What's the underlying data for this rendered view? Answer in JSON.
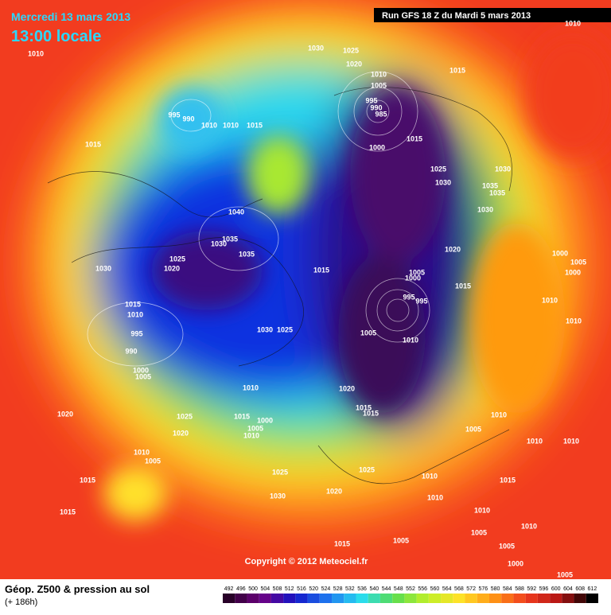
{
  "header": {
    "date": "Mercredi 13 mars 2013",
    "time": "13:00 locale",
    "run": "Run GFS 18 Z du Mardi 5 mars 2013"
  },
  "footer": {
    "title": "Géop. Z500 & pression au sol",
    "lead": "(+ 186h)",
    "copyright": "Copyright © 2012 Meteociel.fr"
  },
  "colorbar": {
    "labels": [
      492,
      496,
      500,
      504,
      508,
      512,
      516,
      520,
      524,
      528,
      532,
      536,
      540,
      544,
      548,
      552,
      556,
      560,
      564,
      568,
      572,
      576,
      580,
      584,
      588,
      592,
      596,
      600,
      604,
      608,
      612
    ]
  },
  "isobars": [
    "1010",
    "1010",
    "1030",
    "1025",
    "1020",
    "1015",
    "1010",
    "1005",
    "995",
    "990",
    "985",
    "995",
    "990",
    "1010",
    "1010",
    "1015",
    "1015",
    "1000",
    "1015",
    "1025",
    "1030",
    "1030",
    "1035",
    "1035",
    "1030",
    "1040",
    "1035",
    "1030",
    "1035",
    "1025",
    "1020",
    "1030",
    "1015",
    "1020",
    "1005",
    "1000",
    "1015",
    "1000",
    "1005",
    "1000",
    "995",
    "995",
    "1015",
    "1010",
    "995",
    "1030",
    "1025",
    "1005",
    "1010",
    "990",
    "1000",
    "1005",
    "1010",
    "1010",
    "1010",
    "1020",
    "1015",
    "1015",
    "1025",
    "1020",
    "1015",
    "1000",
    "1005",
    "1010",
    "1020",
    "1010",
    "1005",
    "1010",
    "1010",
    "1010",
    "1005",
    "1015",
    "1025",
    "1025",
    "1010",
    "1015",
    "1030",
    "1020",
    "1010",
    "1015",
    "1010",
    "1010",
    "1005",
    "1005",
    "1015",
    "1005",
    "1000",
    "1005"
  ]
}
